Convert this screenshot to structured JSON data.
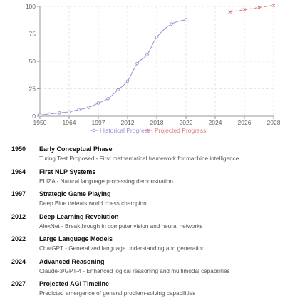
{
  "chart_data": {
    "type": "line",
    "x_ticks": [
      "1950",
      "1964",
      "1997",
      "2012",
      "2018",
      "2022",
      "2024",
      "2026",
      "2028"
    ],
    "y_ticks": [
      0,
      25,
      50,
      75,
      100
    ],
    "ylim": [
      0,
      100
    ],
    "grid": true,
    "legend_placement": "bottom-center",
    "series": [
      {
        "name": "Historical Progress",
        "color": "#9b8ed0",
        "dashed": false,
        "marker": "circle",
        "points": [
          {
            "x": 0.0,
            "y": 1
          },
          {
            "x": 0.33,
            "y": 2
          },
          {
            "x": 0.67,
            "y": 3
          },
          {
            "x": 1.0,
            "y": 4
          },
          {
            "x": 1.33,
            "y": 6
          },
          {
            "x": 1.67,
            "y": 8
          },
          {
            "x": 2.0,
            "y": 12
          },
          {
            "x": 2.33,
            "y": 16
          },
          {
            "x": 2.67,
            "y": 24
          },
          {
            "x": 3.0,
            "y": 32
          },
          {
            "x": 3.33,
            "y": 48
          },
          {
            "x": 3.67,
            "y": 56
          },
          {
            "x": 4.0,
            "y": 72
          },
          {
            "x": 4.5,
            "y": 84
          },
          {
            "x": 5.0,
            "y": 88
          }
        ]
      },
      {
        "name": "Projected Progress",
        "color": "#e0787a",
        "dashed": true,
        "marker": "cross",
        "points": [
          {
            "x": 6.5,
            "y": 95
          },
          {
            "x": 7.0,
            "y": 97
          },
          {
            "x": 7.5,
            "y": 99
          },
          {
            "x": 8.0,
            "y": 101
          }
        ]
      }
    ]
  },
  "colors": {
    "grid": "#e6e6e6",
    "axis": "#999999",
    "tick_text": "#666666"
  },
  "timeline": [
    {
      "year": "1950",
      "title": "Early Conceptual Phase",
      "desc": "Turing Test Proposed - First mathematical framework for machine intelligence"
    },
    {
      "year": "1964",
      "title": "First NLP Systems",
      "desc": "ELIZA - Natural language processing demonstration"
    },
    {
      "year": "1997",
      "title": "Strategic Game Playing",
      "desc": "Deep Blue defeats world chess champion"
    },
    {
      "year": "2012",
      "title": "Deep Learning Revolution",
      "desc": "AlexNet - Breakthrough in computer vision and neural networks"
    },
    {
      "year": "2022",
      "title": "Large Language Models",
      "desc": "ChatGPT - Generalized language understanding and generation"
    },
    {
      "year": "2024",
      "title": "Advanced Reasoning",
      "desc": "Claude-3/GPT-4 - Enhanced logical reasoning and multimodal capabilities"
    },
    {
      "year": "2027",
      "title": "Projected AGI Timeline",
      "desc": "Predicted emergence of general problem-solving capabilities"
    }
  ]
}
